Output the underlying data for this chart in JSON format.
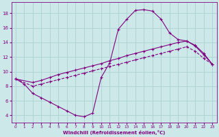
{
  "xlabel": "Windchill (Refroidissement éolien,°C)",
  "bg_color": "#cce8e8",
  "line_color": "#800080",
  "grid_color": "#b0d4d4",
  "xlim": [
    -0.5,
    23.5
  ],
  "ylim": [
    3.0,
    19.5
  ],
  "xticks": [
    0,
    1,
    2,
    3,
    4,
    5,
    6,
    7,
    8,
    9,
    10,
    11,
    12,
    13,
    14,
    15,
    16,
    17,
    18,
    19,
    20,
    21,
    22,
    23
  ],
  "yticks": [
    4,
    6,
    8,
    10,
    12,
    14,
    16,
    18
  ],
  "line1_x": [
    0,
    1,
    2,
    3,
    4,
    5,
    6,
    7,
    8,
    9,
    10,
    11,
    12,
    13,
    14,
    15,
    16,
    17,
    18,
    19,
    20,
    21,
    22,
    23
  ],
  "line1_y": [
    9.0,
    8.3,
    7.0,
    6.4,
    5.8,
    5.2,
    4.6,
    4.0,
    3.8,
    4.3,
    9.2,
    11.2,
    15.8,
    17.2,
    18.4,
    18.5,
    18.3,
    17.2,
    15.3,
    14.4,
    14.2,
    13.6,
    12.5,
    11.0
  ],
  "line2_x": [
    0,
    2,
    3,
    4,
    5,
    6,
    7,
    8,
    9,
    10,
    11,
    12,
    13,
    14,
    15,
    16,
    17,
    18,
    19,
    20,
    21,
    22,
    23
  ],
  "line2_y": [
    9.0,
    8.5,
    8.8,
    9.2,
    9.6,
    9.9,
    10.2,
    10.5,
    10.8,
    11.1,
    11.5,
    11.8,
    12.2,
    12.5,
    12.8,
    13.1,
    13.4,
    13.7,
    14.0,
    14.2,
    13.5,
    12.3,
    11.0
  ],
  "line3_x": [
    0,
    2,
    3,
    4,
    5,
    6,
    7,
    8,
    9,
    10,
    11,
    12,
    13,
    14,
    15,
    16,
    17,
    18,
    19,
    20,
    21,
    22,
    23
  ],
  "line3_y": [
    9.0,
    8.0,
    8.3,
    8.6,
    8.9,
    9.2,
    9.5,
    9.8,
    10.1,
    10.4,
    10.7,
    11.0,
    11.3,
    11.6,
    11.9,
    12.2,
    12.5,
    12.8,
    13.1,
    13.4,
    12.8,
    11.8,
    11.0
  ]
}
